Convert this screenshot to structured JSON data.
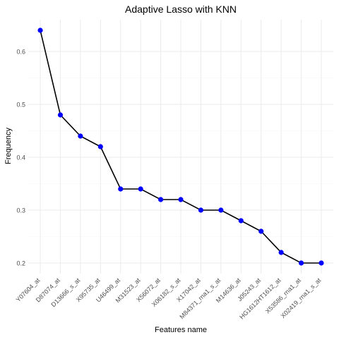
{
  "chart_data": {
    "type": "line",
    "title": "Adaptive Lasso with KNN",
    "xlabel": "Features name",
    "ylabel": "Frequency",
    "categories": [
      "Y07604_at",
      "D87074_at",
      "D13666_s_at",
      "X95735_at",
      "U46499_at",
      "M31523_at",
      "X56072_at",
      "X06182_s_at",
      "X17042_at",
      "M84371_rna1_s_at",
      "M14636_at",
      "J05243_at",
      "HG1612HT1612_at",
      "X53586_rna1_at",
      "X02419_rna1_s_at"
    ],
    "values": [
      0.64,
      0.48,
      0.44,
      0.42,
      0.34,
      0.34,
      0.32,
      0.32,
      0.3,
      0.3,
      0.28,
      0.26,
      0.22,
      0.2,
      0.2
    ],
    "ylim": [
      0.18,
      0.66
    ],
    "yticks": [
      0.2,
      0.3,
      0.4,
      0.5,
      0.6
    ],
    "ytick_labels": [
      "0.2",
      "0.3",
      "0.4",
      "0.5",
      "0.6"
    ],
    "grid": true,
    "legend": "none",
    "colors": {
      "line": "#000000",
      "point": "#0000ff",
      "grid_major": "#ebebeb",
      "grid_minor": "#f5f5f5",
      "axis_text": "#4d4d4d",
      "title_text": "#000000"
    }
  }
}
